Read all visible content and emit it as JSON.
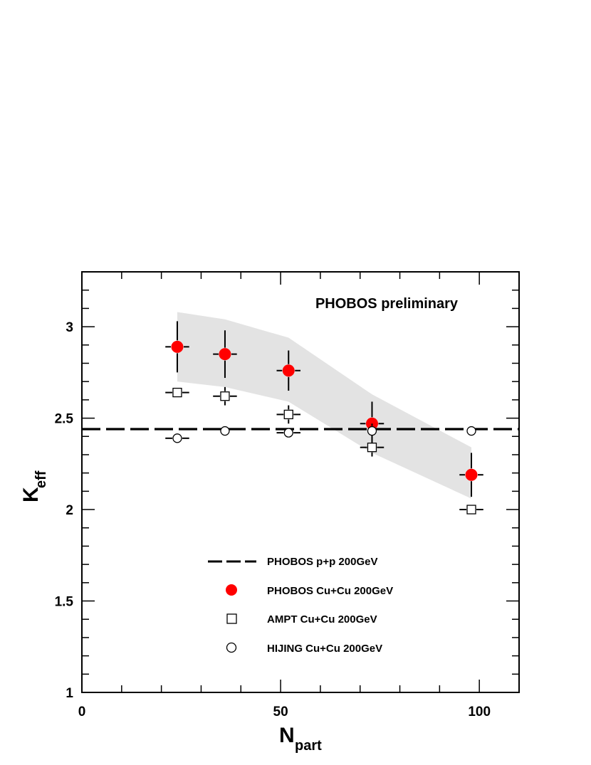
{
  "chart_data": {
    "type": "scatter",
    "annotation": "PHOBOS preliminary",
    "xlabel": {
      "main": "N",
      "sub": "part"
    },
    "ylabel": {
      "main": "K",
      "sub": "eff"
    },
    "xlim": [
      0,
      110
    ],
    "ylim": [
      1,
      3.3
    ],
    "x_ticks": [
      {
        "value": 0,
        "label": "0"
      },
      {
        "value": 50,
        "label": "50"
      },
      {
        "value": 100,
        "label": "100"
      }
    ],
    "y_ticks": [
      {
        "value": 1,
        "label": "1"
      },
      {
        "value": 1.5,
        "label": "1.5"
      },
      {
        "value": 2,
        "label": "2"
      },
      {
        "value": 2.5,
        "label": "2.5"
      },
      {
        "value": 3,
        "label": "3"
      }
    ],
    "grid": false,
    "legend_position": "bottom-center",
    "systematic_band": {
      "color": "#e3e3e3",
      "x": [
        24,
        36,
        52,
        73,
        98
      ],
      "upper": [
        3.08,
        3.04,
        2.94,
        2.63,
        2.34
      ],
      "lower": [
        2.7,
        2.67,
        2.59,
        2.31,
        2.06
      ]
    },
    "series": [
      {
        "name": "PHOBOS p+p 200GeV",
        "kind": "hline",
        "y": 2.44,
        "color": "#000000"
      },
      {
        "name": "PHOBOS Cu+Cu 200GeV",
        "kind": "filled-circle",
        "color": "#ff0000",
        "points": [
          {
            "x": 24,
            "y": 2.89,
            "yerr": 0.14,
            "xerr": 3
          },
          {
            "x": 36,
            "y": 2.85,
            "yerr": 0.13,
            "xerr": 3
          },
          {
            "x": 52,
            "y": 2.76,
            "yerr": 0.11,
            "xerr": 3
          },
          {
            "x": 73,
            "y": 2.47,
            "yerr": 0.12,
            "xerr": 3
          },
          {
            "x": 98,
            "y": 2.19,
            "yerr": 0.12,
            "xerr": 3
          }
        ]
      },
      {
        "name": "AMPT Cu+Cu 200GeV",
        "kind": "open-square",
        "color": "#000000",
        "points": [
          {
            "x": 24,
            "y": 2.64,
            "yerr": 0,
            "xerr": 3
          },
          {
            "x": 36,
            "y": 2.62,
            "yerr": 0.05,
            "xerr": 3
          },
          {
            "x": 52,
            "y": 2.52,
            "yerr": 0.05,
            "xerr": 3
          },
          {
            "x": 73,
            "y": 2.34,
            "yerr": 0.05,
            "xerr": 3
          },
          {
            "x": 98,
            "y": 2.0,
            "yerr": 0,
            "xerr": 3
          }
        ]
      },
      {
        "name": "HIJING Cu+Cu 200GeV",
        "kind": "open-circle",
        "color": "#000000",
        "points": [
          {
            "x": 24,
            "y": 2.39,
            "yerr": 0,
            "xerr": 3
          },
          {
            "x": 36,
            "y": 2.43,
            "yerr": 0,
            "xerr": 0
          },
          {
            "x": 52,
            "y": 2.42,
            "yerr": 0,
            "xerr": 3
          },
          {
            "x": 73,
            "y": 2.43,
            "yerr": 0.04,
            "xerr": 0
          },
          {
            "x": 98,
            "y": 2.43,
            "yerr": 0,
            "xerr": 0
          }
        ]
      }
    ]
  }
}
